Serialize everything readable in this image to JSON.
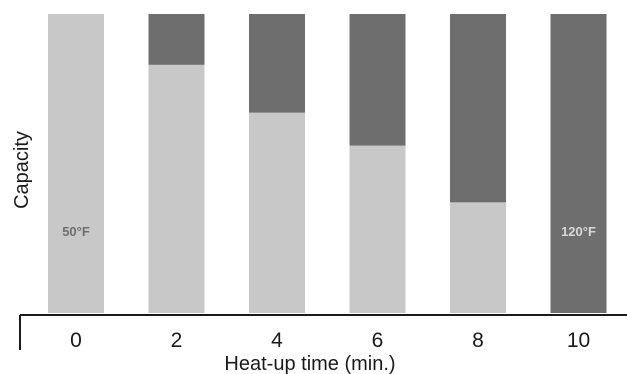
{
  "chart_data": {
    "type": "bar",
    "stacked": true,
    "xlabel": "Heat-up time (min.)",
    "ylabel": "Capacity",
    "ylim": [
      0,
      100
    ],
    "categories": [
      "0",
      "2",
      "4",
      "6",
      "8",
      "10"
    ],
    "series": [
      {
        "values": [
          100,
          83,
          67,
          56,
          37,
          0
        ],
        "color": "#c8c8c8"
      },
      {
        "values": [
          0,
          17,
          33,
          44,
          63,
          100
        ],
        "color": "#6e6e6e"
      }
    ],
    "annotations": [
      {
        "category": "0",
        "text": "50°F",
        "color": "#6e6e6e"
      },
      {
        "category": "10",
        "text": "120°F",
        "color": "#d8d8d8"
      }
    ],
    "grid": false,
    "legend": "none"
  }
}
